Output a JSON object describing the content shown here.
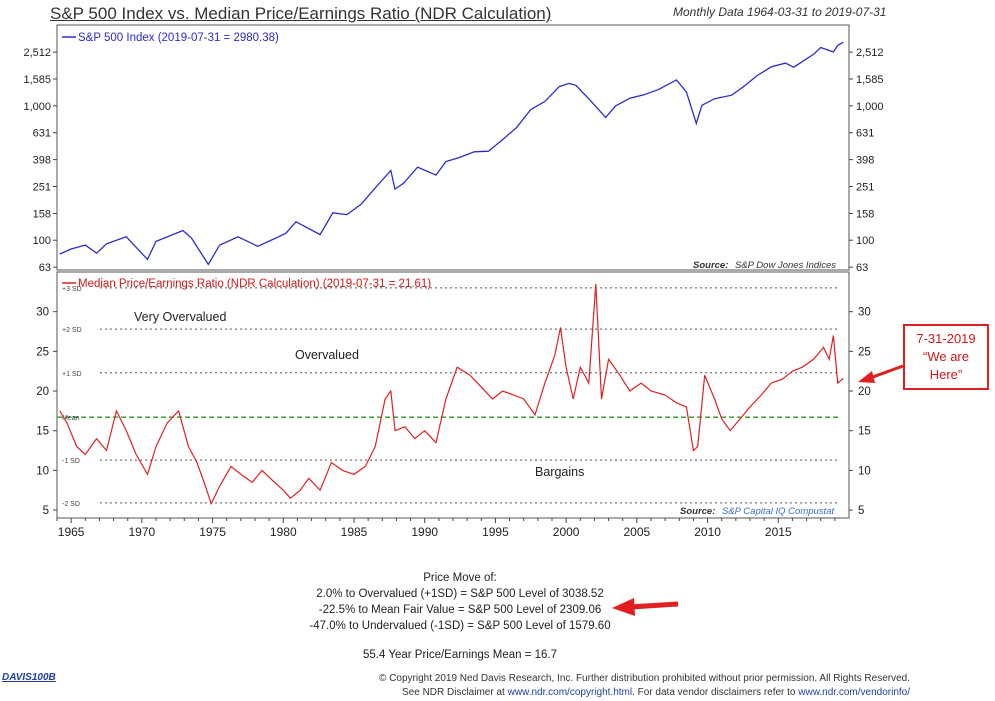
{
  "title": "S&P 500 Index vs. Median Price/Earnings Ratio (NDR Calculation)",
  "subtitle": "Monthly Data 1964-03-31 to 2019-07-31",
  "chart_data": [
    {
      "type": "line",
      "title": "S&P 500 Index",
      "legend": "S&P 500 Index (2019-07-31 = 2980.38)",
      "color": "#2b2bd0",
      "yscale": "log",
      "ylim": [
        60,
        4000
      ],
      "yticks": [
        "63",
        "100",
        "158",
        "251",
        "398",
        "631",
        "1,000",
        "1,585",
        "2,512"
      ],
      "ytick_values": [
        63,
        100,
        158,
        251,
        398,
        631,
        1000,
        1585,
        2512
      ],
      "source_label": "Source:",
      "source": "S&P Dow Jones Indices",
      "series": [
        {
          "name": "S&P 500 Index",
          "x": [
            1964.2,
            1965,
            1966,
            1966.8,
            1967.5,
            1968.9,
            1970.4,
            1971,
            1972.9,
            1973.5,
            1974.7,
            1975.5,
            1976.8,
            1978.2,
            1979.5,
            1980.2,
            1980.9,
            1982.6,
            1983.5,
            1984.5,
            1985.5,
            1986.5,
            1987.6,
            1987.9,
            1988.5,
            1989.5,
            1990.8,
            1991.5,
            1992.5,
            1993.5,
            1994.5,
            1995.5,
            1996.5,
            1997.5,
            1998.5,
            1999.5,
            2000.2,
            2000.7,
            2001.7,
            2002.8,
            2003.5,
            2004.5,
            2005.5,
            2006.5,
            2007.8,
            2008.5,
            2009.2,
            2009.6,
            2010.5,
            2011.7,
            2012.5,
            2013.5,
            2014.5,
            2015.5,
            2016.1,
            2016.8,
            2017.5,
            2018,
            2018.9,
            2019.2,
            2019.6
          ],
          "values": [
            79,
            86,
            92,
            80,
            94,
            106,
            72,
            98,
            118,
            104,
            66,
            92,
            106,
            90,
            104,
            113,
            137,
            110,
            160,
            155,
            185,
            245,
            330,
            240,
            265,
            350,
            305,
            385,
            415,
            455,
            460,
            560,
            690,
            940,
            1080,
            1390,
            1470,
            1420,
            1100,
            820,
            1000,
            1140,
            1210,
            1320,
            1560,
            1270,
            740,
            1010,
            1130,
            1200,
            1380,
            1680,
            1950,
            2080,
            1940,
            2170,
            2420,
            2720,
            2520,
            2820,
            2980
          ]
        }
      ]
    },
    {
      "type": "line",
      "title": "Median Price/Earnings Ratio",
      "legend": "Median Price/Earnings Ratio (NDR Calculation) (2019-07-31 = 21.61)",
      "color": "#e02020",
      "ylim": [
        4,
        35
      ],
      "yticks": [
        "5",
        "10",
        "15",
        "20",
        "25",
        "30"
      ],
      "ytick_values": [
        5,
        10,
        15,
        20,
        25,
        30
      ],
      "source_label": "Source:",
      "source": "S&P Capital IQ Compustat",
      "reference_lines": [
        {
          "label": "+3 SD",
          "value": 33
        },
        {
          "label": "+2 SD",
          "value": 27.8
        },
        {
          "label": "+1 SD",
          "value": 22.3
        },
        {
          "label": "Mean",
          "value": 16.7
        },
        {
          "label": "-1 SD",
          "value": 11.3
        },
        {
          "label": "-2 SD",
          "value": 5.9
        }
      ],
      "zones": [
        "Very Overvalued",
        "Overvalued",
        "Bargains"
      ],
      "series": [
        {
          "name": "Median P/E",
          "x": [
            1964.2,
            1964.7,
            1965.4,
            1966,
            1966.8,
            1967.5,
            1968.2,
            1968.9,
            1969.6,
            1970.4,
            1971,
            1971.8,
            1972.6,
            1973.3,
            1973.9,
            1974.5,
            1974.9,
            1975.5,
            1976.3,
            1977,
            1977.8,
            1978.5,
            1979.2,
            1980,
            1980.5,
            1981.2,
            1981.8,
            1982.6,
            1983.4,
            1984.2,
            1985,
            1985.8,
            1986.5,
            1987.2,
            1987.6,
            1987.9,
            1988.6,
            1989.3,
            1990,
            1990.8,
            1991.5,
            1992.3,
            1993.2,
            1994,
            1994.8,
            1995.5,
            1996.3,
            1997,
            1997.8,
            1998.5,
            1999.2,
            1999.6,
            2000,
            2000.5,
            2001,
            2001.6,
            2002.1,
            2002.5,
            2003,
            2003.8,
            2004.5,
            2005.3,
            2006,
            2007,
            2007.8,
            2008.5,
            2009,
            2009.3,
            2009.8,
            2010.5,
            2011,
            2011.6,
            2012.3,
            2013,
            2013.8,
            2014.5,
            2015.3,
            2016,
            2016.7,
            2017.5,
            2018.2,
            2018.6,
            2018.9,
            2019.2,
            2019.6
          ],
          "values": [
            17.5,
            16,
            13,
            12,
            14,
            12.5,
            17.5,
            15,
            12,
            9.5,
            13,
            16,
            17.5,
            13,
            11,
            8,
            5.8,
            8,
            10.5,
            9.5,
            8.5,
            10,
            8.8,
            7.5,
            6.5,
            7.5,
            9,
            7.5,
            11,
            10,
            9.5,
            10.5,
            13,
            19,
            20,
            15,
            15.5,
            14,
            15,
            13.5,
            19,
            23,
            22,
            20.5,
            19,
            20,
            19.5,
            19,
            17,
            21,
            24.5,
            28,
            23,
            19,
            23,
            21,
            33.5,
            19,
            24,
            22,
            20,
            21,
            20,
            19.5,
            18.5,
            18,
            12.5,
            13,
            22,
            19,
            16.5,
            15,
            16.5,
            18,
            19.5,
            21,
            21.5,
            22.5,
            23,
            24,
            25.5,
            24,
            27,
            21,
            21.6
          ]
        }
      ]
    }
  ],
  "annotation": {
    "line1": "7-31-2019",
    "line2": "“We are",
    "line3": "Here”"
  },
  "price_move": {
    "heading": "Price Move of:",
    "line1": "2.0% to Overvalued (+1SD) = S&P 500 Level of 3038.52",
    "line2": "-22.5% to Mean Fair Value = S&P 500 Level of 2309.06",
    "line3": "-47.0% to Undervalued (-1SD) = S&P 500 Level of 1579.60",
    "mean": "55.4 Year Price/Earnings Mean = 16.7"
  },
  "x_axis": {
    "labels": [
      "1965",
      "1970",
      "1975",
      "1980",
      "1985",
      "1990",
      "1995",
      "2000",
      "2005",
      "2010",
      "2015"
    ],
    "values": [
      1965,
      1970,
      1975,
      1980,
      1985,
      1990,
      1995,
      2000,
      2005,
      2010,
      2015
    ],
    "range": [
      1964,
      2020
    ]
  },
  "footer": {
    "code": "DAVIS100B",
    "copyright": "© Copyright 2019 Ned Davis Research, Inc. Further distribution prohibited without prior permission. All Rights Reserved.",
    "disclaimer_prefix": "See NDR Disclaimer at",
    "link1": "www.ndr.com/copyright.html",
    "disclaimer_middle": ". For data vendor disclaimers refer to",
    "link2": "www.ndr.com/vendorinfo/"
  },
  "colors": {
    "accent_red": "#e02020",
    "sp500_blue": "#2b2bd0",
    "mean_green": "#2a9a2a"
  }
}
